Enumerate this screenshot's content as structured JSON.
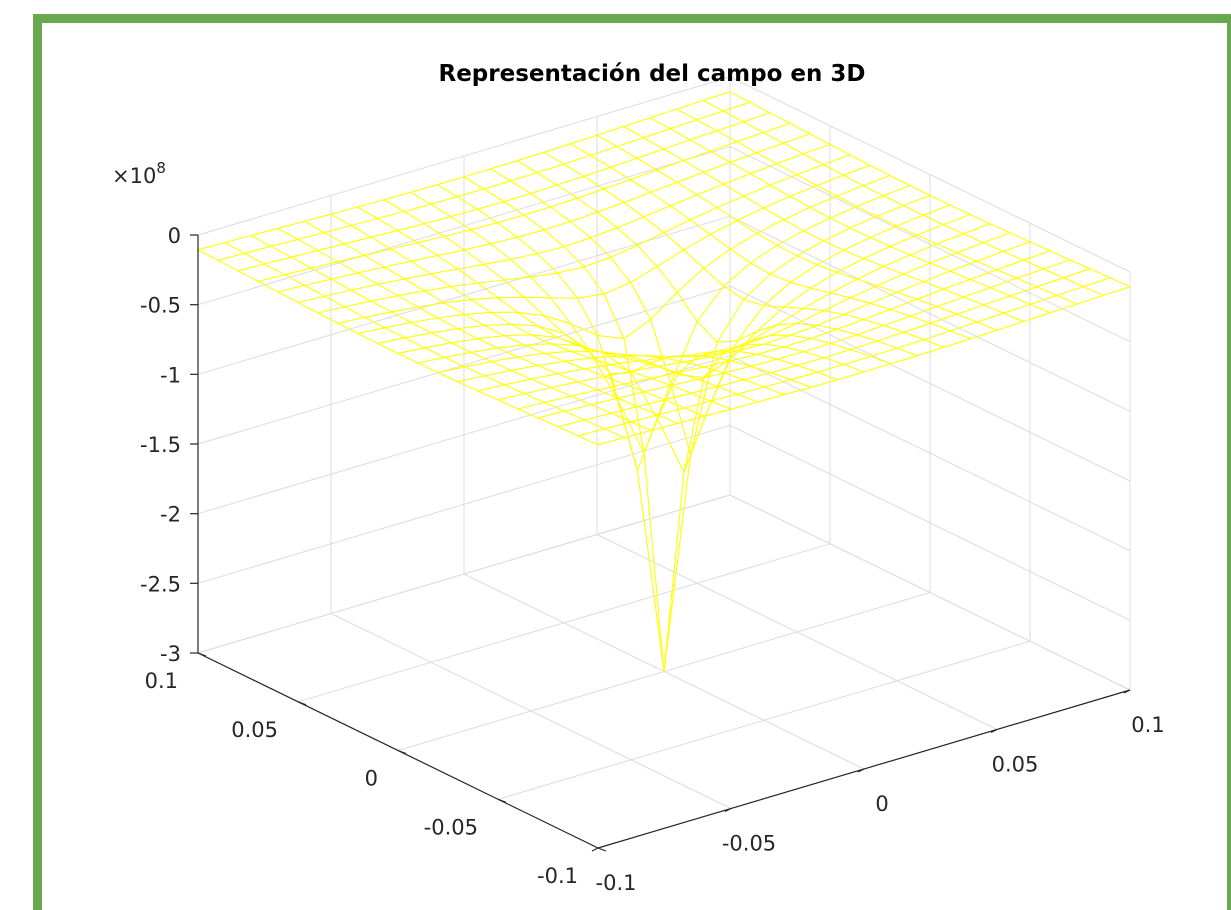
{
  "chart_data": {
    "type": "surface",
    "title": "Representación del campo en 3D",
    "xlabel": "",
    "ylabel": "",
    "zlabel": "",
    "z_exponent_label": "×10",
    "z_exponent_power": "8",
    "x_ticks": [
      "-0.1",
      "-0.05",
      "0",
      "0.05",
      "0.1"
    ],
    "y_ticks": [
      "-0.1",
      "-0.05",
      "0",
      "0.05",
      "0.1"
    ],
    "z_ticks": [
      "0",
      "-0.5",
      "-1",
      "-1.5",
      "-2",
      "-2.5",
      "-3"
    ],
    "xlim": [
      -0.1,
      0.1
    ],
    "ylim": [
      -0.1,
      0.1
    ],
    "zlim": [
      -300000000.0,
      0
    ],
    "grid": true,
    "mesh_color": "#ffff00",
    "grid_points": 21,
    "surface_model": "z = -k / r, clipped to zlim, minimum -3e8 at the origin"
  }
}
